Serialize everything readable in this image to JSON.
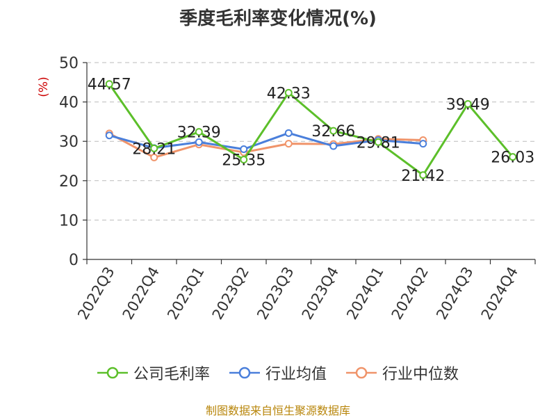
{
  "colors": {
    "company": "#5cbf2a",
    "industry_avg": "#4a7fdb",
    "industry_median": "#f0946a",
    "ylabel": "#cc0000",
    "source": "#b8860b"
  },
  "chart_data": {
    "type": "line",
    "title": "季度毛利率变化情况(%)",
    "ylabel": "(%)",
    "xlabel": "",
    "categories": [
      "2022Q3",
      "2022Q4",
      "2023Q1",
      "2023Q2",
      "2023Q3",
      "2023Q4",
      "2024Q1",
      "2024Q2",
      "2024Q3",
      "2024Q4"
    ],
    "ylim": [
      0,
      50
    ],
    "yticks": [
      "0",
      "10",
      "20",
      "30",
      "40",
      "50"
    ],
    "grid": true,
    "legend_position": "bottom",
    "series": [
      {
        "name": "公司毛利率",
        "color_key": "company",
        "values": [
          44.57,
          28.21,
          32.39,
          25.35,
          42.33,
          32.66,
          29.81,
          21.42,
          39.49,
          26.03
        ],
        "labels": [
          "44.57",
          "28.21",
          "32.39",
          "25.35",
          "42.33",
          "32.66",
          "29.81",
          "21.42",
          "39.49",
          "26.03"
        ]
      },
      {
        "name": "行业均值",
        "color_key": "industry_avg",
        "values": [
          31.5,
          28.3,
          29.8,
          28.0,
          32.1,
          28.8,
          30.3,
          29.4,
          null,
          null
        ]
      },
      {
        "name": "行业中位数",
        "color_key": "industry_median",
        "values": [
          32.0,
          25.9,
          29.2,
          27.2,
          29.4,
          29.3,
          30.6,
          30.3,
          null,
          null
        ]
      }
    ]
  },
  "source": "制图数据来自恒生聚源数据库"
}
